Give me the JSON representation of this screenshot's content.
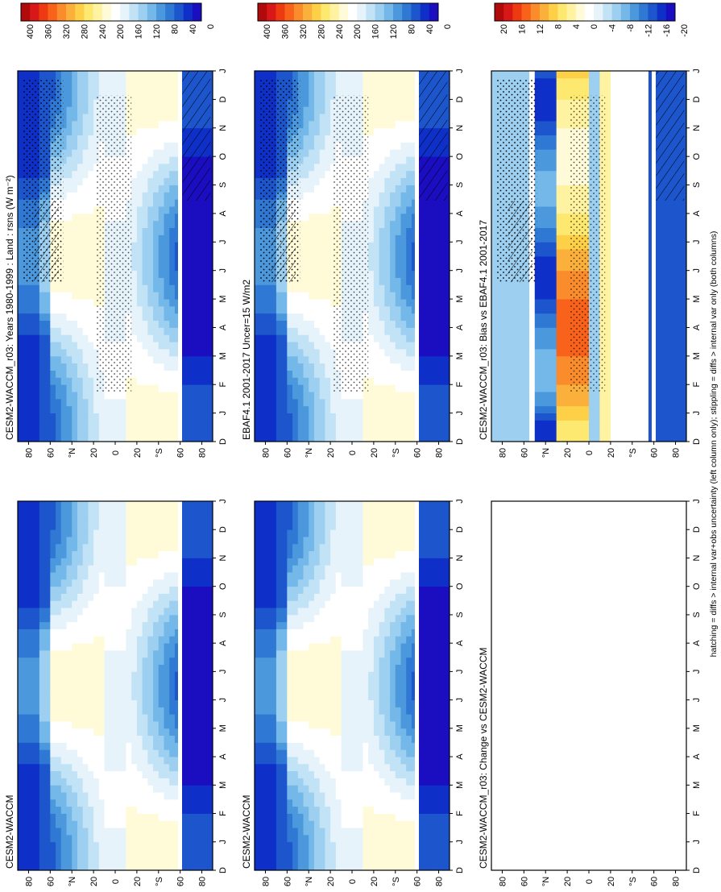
{
  "footer_note": "hatching = diffs > internal var+obs uncertainty (left column only); stippling = diffs > internal var only (both columns)",
  "month_labels": [
    "D",
    "J",
    "F",
    "M",
    "A",
    "M",
    "J",
    "J",
    "A",
    "S",
    "O",
    "N",
    "D",
    "J"
  ],
  "lat_labels": [
    "80",
    "60",
    "°N",
    "20",
    "0",
    "20",
    "°S",
    "60",
    "80"
  ],
  "colorbars": {
    "abs": {
      "labels": [
        "400",
        "360",
        "320",
        "280",
        "240",
        "200",
        "160",
        "120",
        "80",
        "40",
        "0"
      ],
      "colors": [
        "#b00a0a",
        "#d81818",
        "#ee3a10",
        "#f8621a",
        "#fb8c2c",
        "#fcb03c",
        "#fdd048",
        "#fde870",
        "#fff2a0",
        "#fffbd8",
        "#ffffff",
        "#e6f3fb",
        "#c2e2f6",
        "#9ccff0",
        "#73b8e8",
        "#4c98dd",
        "#2f78d4",
        "#1c55cc",
        "#0e30c8",
        "#1a0ec0"
      ]
    },
    "diff": {
      "labels": [
        "20",
        "16",
        "12",
        "8",
        "4",
        "0",
        "-4",
        "-8",
        "-12",
        "-16",
        "-20"
      ],
      "colors": [
        "#b00a0a",
        "#d81818",
        "#ee3a10",
        "#f8621a",
        "#fb8c2c",
        "#fcb03c",
        "#fdd048",
        "#fde870",
        "#fff2a0",
        "#fffbd8",
        "#ffffff",
        "#e6f3fb",
        "#c2e2f6",
        "#9ccff0",
        "#73b8e8",
        "#4c98dd",
        "#2f78d4",
        "#1c55cc",
        "#0e30c8",
        "#1a0ec0"
      ]
    }
  },
  "chart_data": [
    {
      "type": "heatmap",
      "title": "CESM2-WACCM_r03: Years 1980-1999 : Land : rsns (W m⁻²)",
      "xlabel": "",
      "ylabel": "",
      "colorbar": "abs",
      "x": [
        "D",
        "J",
        "F",
        "M",
        "A",
        "M",
        "J",
        "J",
        "A",
        "S",
        "O",
        "N",
        "D",
        "J"
      ],
      "y": [
        80,
        60,
        40,
        20,
        0,
        -20,
        -40,
        -60,
        -80
      ],
      "ylim": [
        -90,
        90
      ],
      "values_unit": "W m-2",
      "hatching": true,
      "stippling": true
    },
    {
      "type": "heatmap",
      "title": "CESM2-WACCM",
      "colorbar": "abs",
      "x": [
        "D",
        "J",
        "F",
        "M",
        "A",
        "M",
        "J",
        "J",
        "A",
        "S",
        "O",
        "N",
        "D",
        "J"
      ],
      "y": [
        80,
        60,
        40,
        20,
        0,
        -20,
        -40,
        -60,
        -80
      ],
      "ylim": [
        -90,
        90
      ],
      "hatching": false,
      "stippling": false
    },
    {
      "type": "heatmap",
      "title": "EBAF4.1 2001-2017 Uncer=15 W/m2",
      "colorbar": "abs",
      "x": [
        "D",
        "J",
        "F",
        "M",
        "A",
        "M",
        "J",
        "J",
        "A",
        "S",
        "O",
        "N",
        "D",
        "J"
      ],
      "y": [
        80,
        60,
        40,
        20,
        0,
        -20,
        -40,
        -60,
        -80
      ],
      "ylim": [
        -90,
        90
      ],
      "hatching": true,
      "stippling": true
    },
    {
      "type": "heatmap",
      "title": "CESM2-WACCM",
      "colorbar": "abs",
      "x": [
        "D",
        "J",
        "F",
        "M",
        "A",
        "M",
        "J",
        "J",
        "A",
        "S",
        "O",
        "N",
        "D",
        "J"
      ],
      "y": [
        80,
        60,
        40,
        20,
        0,
        -20,
        -40,
        -60,
        -80
      ],
      "ylim": [
        -90,
        90
      ],
      "hatching": false,
      "stippling": false
    },
    {
      "type": "heatmap",
      "title": "CESM2-WACCM_r03: Bias vs EBAF4.1 2001-2017",
      "colorbar": "diff",
      "x": [
        "D",
        "J",
        "F",
        "M",
        "A",
        "M",
        "J",
        "J",
        "A",
        "S",
        "O",
        "N",
        "D",
        "J"
      ],
      "y": [
        80,
        60,
        40,
        20,
        0,
        -20,
        -40,
        -60,
        -80
      ],
      "ylim": [
        -90,
        90
      ],
      "hatching": true,
      "stippling": true
    },
    {
      "type": "heatmap",
      "title": "CESM2-WACCM_r03: Change vs CESM2-WACCM",
      "colorbar": "diff",
      "x": [
        "D",
        "J",
        "F",
        "M",
        "A",
        "M",
        "J",
        "J",
        "A",
        "S",
        "O",
        "N",
        "D",
        "J"
      ],
      "y": [
        80,
        60,
        40,
        20,
        0,
        -20,
        -40,
        -60,
        -80
      ],
      "ylim": [
        -90,
        90
      ],
      "hatching": false,
      "stippling": true
    }
  ]
}
